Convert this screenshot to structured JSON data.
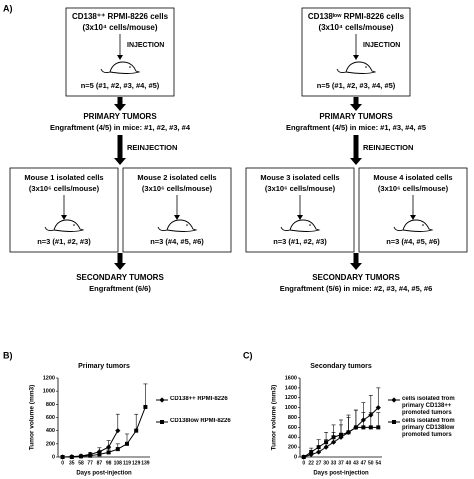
{
  "diagram": {
    "label": "A)",
    "flows": [
      {
        "cells": [
          "CD138⁺⁺ RPMI-8226 cells",
          "(3x10⁴ cells/mouse)"
        ],
        "injection": "INJECTION",
        "n": "n=5 (#1, #2, #3, #4, #5)",
        "primary": [
          "PRIMARY TUMORS",
          "Engraftment (4/5) in mice: #1, #2, #3, #4"
        ],
        "reinjection": "REINJECTION",
        "subgroups": [
          {
            "lines": [
              "Mouse 1 isolated cells",
              "(3x10⁶ cells/mouse)"
            ],
            "n": "n=3 (#1, #2, #3)"
          },
          {
            "lines": [
              "Mouse 2 isolated cells",
              "(3x10⁶ cells/mouse)"
            ],
            "n": "n=3 (#4, #5, #6)"
          }
        ],
        "secondary": [
          "SECONDARY TUMORS",
          "Engraftment (6/6)"
        ]
      },
      {
        "cells": [
          "CD138ˡᵒʷ RPMI-8226 cells",
          "(3x10⁴ cells/mouse)"
        ],
        "injection": "INJECTION",
        "n": "n=5 (#1, #2, #3, #4, #5)",
        "primary": [
          "PRIMARY TUMORS",
          "Engraftment (4/5) in mice: #1, #3, #4, #5"
        ],
        "reinjection": "REINJECTION",
        "subgroups": [
          {
            "lines": [
              "Mouse 3 isolated cells",
              "(3x10⁶ cells/mouse)"
            ],
            "n": "n=3 (#1, #2, #3)"
          },
          {
            "lines": [
              "Mouse 4 isolated cells",
              "(3x10⁶ cells/mouse)"
            ],
            "n": "n=3 (#4, #5, #6)"
          }
        ],
        "secondary": [
          "SECONDARY TUMORS",
          "Engraftment (5/6) in mice: #2, #3, #4, #5, #6"
        ]
      }
    ]
  },
  "chart_data": [
    {
      "type": "line",
      "label": "B)",
      "title": "Primary tumors",
      "x_label": "Days post-injection",
      "y_label": "Tumor volume (mm3)",
      "categories": [
        "0",
        "35",
        "58",
        "77",
        "87",
        "98",
        "108",
        "119",
        "129",
        "139"
      ],
      "series": [
        {
          "name": "CD138++ RPMI-8226",
          "color": "#000000",
          "marker": "diamond",
          "values": [
            0,
            5,
            15,
            40,
            80,
            150,
            400,
            null,
            null,
            null
          ],
          "errors": [
            0,
            5,
            10,
            30,
            60,
            100,
            250,
            null,
            null,
            null
          ]
        },
        {
          "name": "CD138low RPMI-8226",
          "color": "#000000",
          "marker": "square",
          "values": [
            0,
            0,
            10,
            20,
            40,
            70,
            120,
            200,
            400,
            760
          ],
          "errors": [
            0,
            0,
            10,
            15,
            30,
            50,
            80,
            150,
            250,
            350
          ]
        }
      ],
      "ylim": [
        0,
        1200
      ],
      "yticks": [
        0,
        200,
        400,
        600,
        800,
        1000,
        1200
      ]
    },
    {
      "type": "line",
      "label": "C)",
      "title": "Secondary tumors",
      "x_label": "Days post-injection",
      "y_label": "Tumor volume (mm3)",
      "categories": [
        "0",
        "22",
        "27",
        "30",
        "33",
        "37",
        "40",
        "43",
        "47",
        "50",
        "54"
      ],
      "series": [
        {
          "name": "cells isolated from primary CD138++ promoted tumors",
          "color": "#000000",
          "marker": "diamond",
          "values": [
            0,
            50,
            100,
            200,
            300,
            400,
            500,
            600,
            750,
            850,
            1000
          ],
          "errors": [
            0,
            40,
            80,
            150,
            200,
            250,
            300,
            350,
            350,
            400,
            400
          ]
        },
        {
          "name": "cells isolated from primary CD138low promoted tumors",
          "color": "#000000",
          "marker": "square",
          "values": [
            0,
            100,
            200,
            300,
            400,
            450,
            500,
            600,
            600,
            600,
            600
          ],
          "errors": [
            0,
            80,
            150,
            200,
            250,
            300,
            350,
            350,
            300,
            300,
            300
          ]
        }
      ],
      "ylim": [
        0,
        1600
      ],
      "yticks": [
        0,
        200,
        400,
        600,
        800,
        1000,
        1200,
        1400,
        1600
      ]
    }
  ]
}
